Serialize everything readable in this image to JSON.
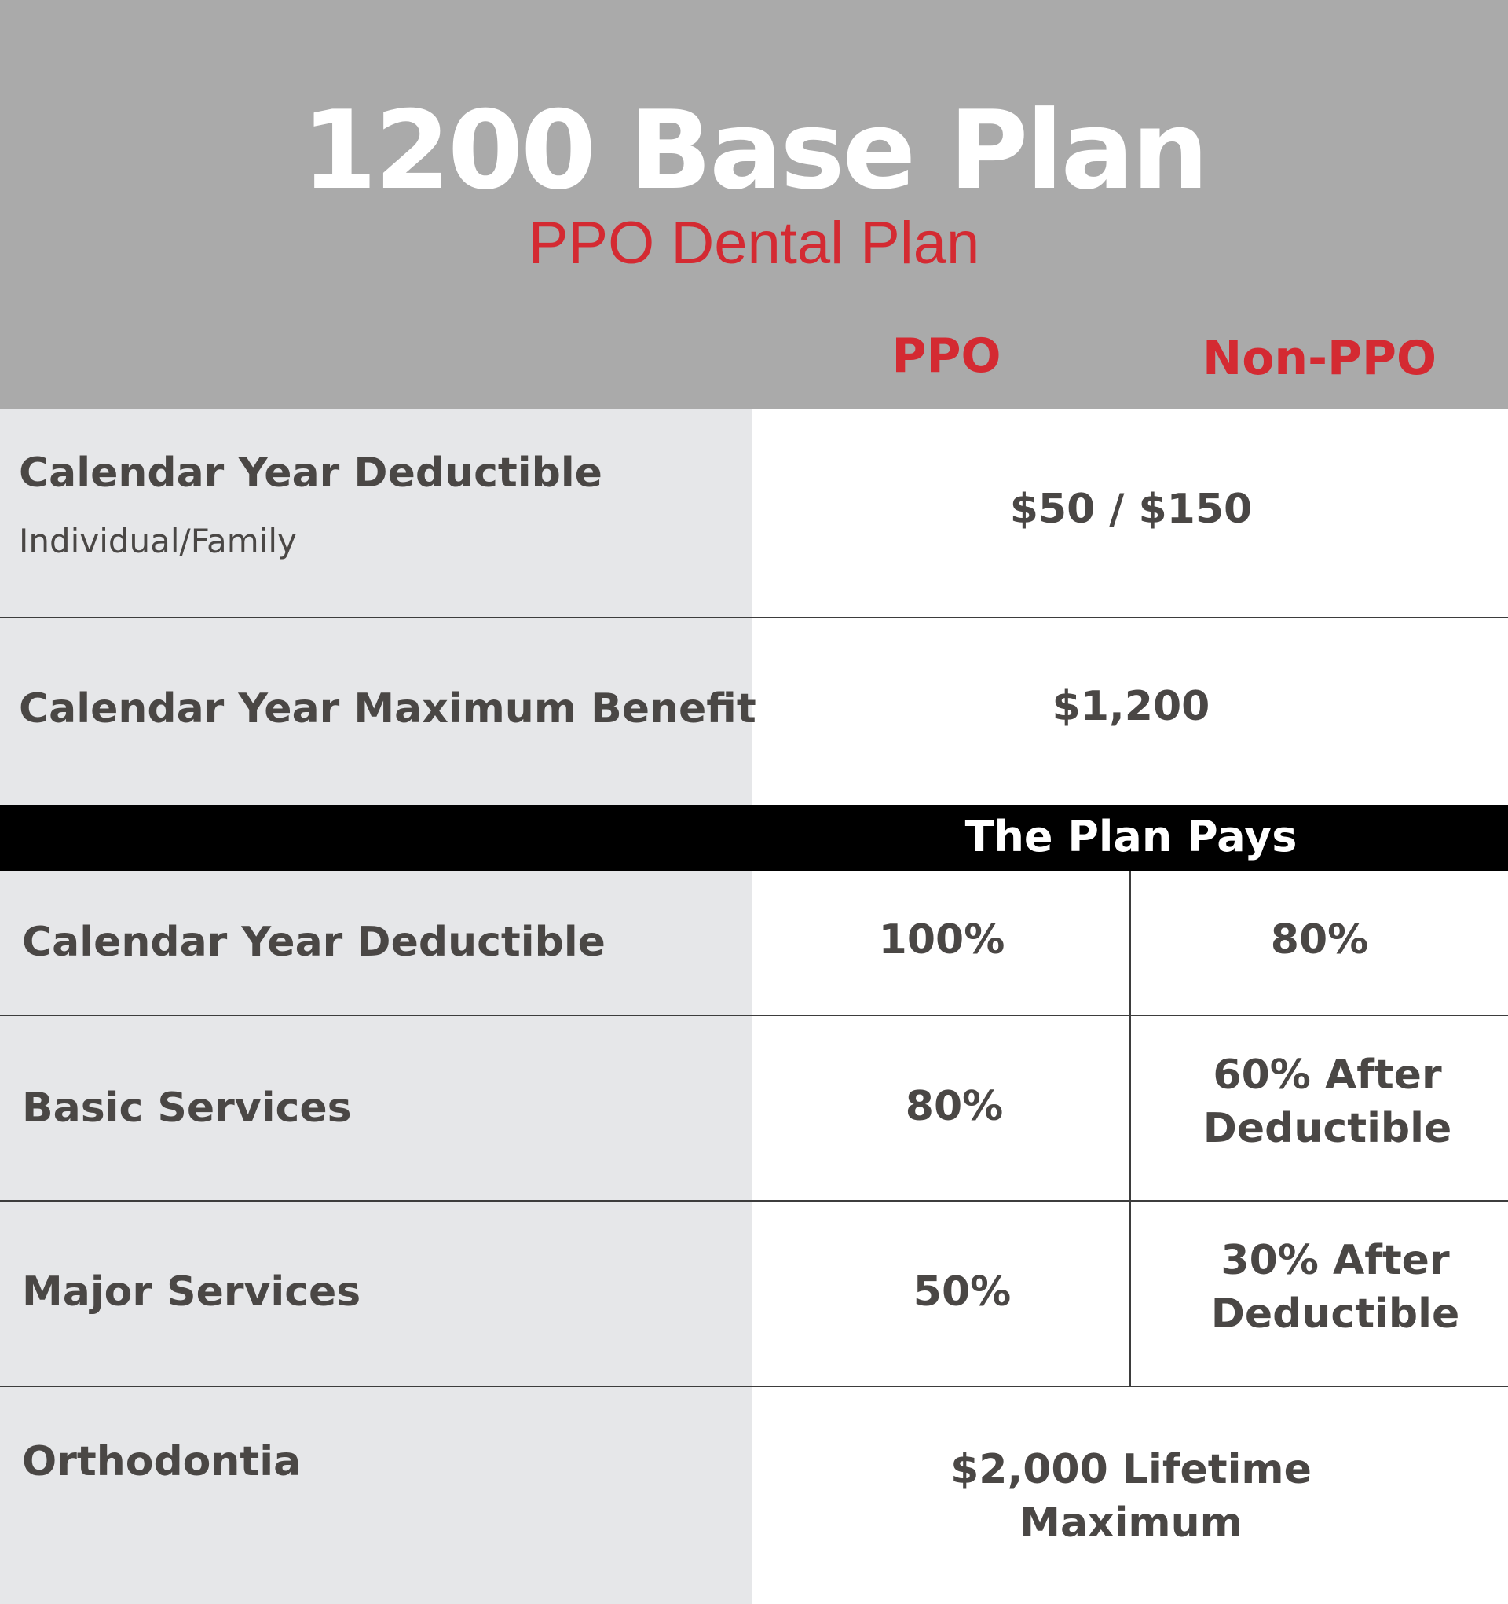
{
  "header": {
    "title": "1200 Base Plan",
    "subtitle": "PPO Dental Plan",
    "columns": [
      "PPO",
      "Non-PPO"
    ]
  },
  "rows_top": [
    {
      "label": "Calendar Year Deductible",
      "sublabel": "Individual/Family",
      "value": "$50 / $150"
    },
    {
      "label": "Calendar Year Maximum Benefit",
      "value": "$1,200"
    }
  ],
  "plan_pays_label": "The Plan Pays",
  "rows_split": [
    {
      "label": "Calendar Year Deductible",
      "ppo": "100%",
      "non_ppo": "80%"
    },
    {
      "label": "Basic Services",
      "ppo": "80%",
      "non_ppo_line1": "60% After",
      "non_ppo_line2": "Deductible"
    },
    {
      "label": "Major Services",
      "ppo": "50%",
      "non_ppo_line1": "30% After",
      "non_ppo_line2": "Deductible"
    }
  ],
  "orthodontia": {
    "label": "Orthodontia",
    "value_line1": "$2,000 Lifetime",
    "value_line2": "Maximum"
  },
  "colors": {
    "header_bg": "#aaaaaa",
    "accent_red": "#d42a32",
    "label_bg": "#e6e7e9",
    "text_dark": "#4a4745",
    "band_bg": "#000000"
  }
}
